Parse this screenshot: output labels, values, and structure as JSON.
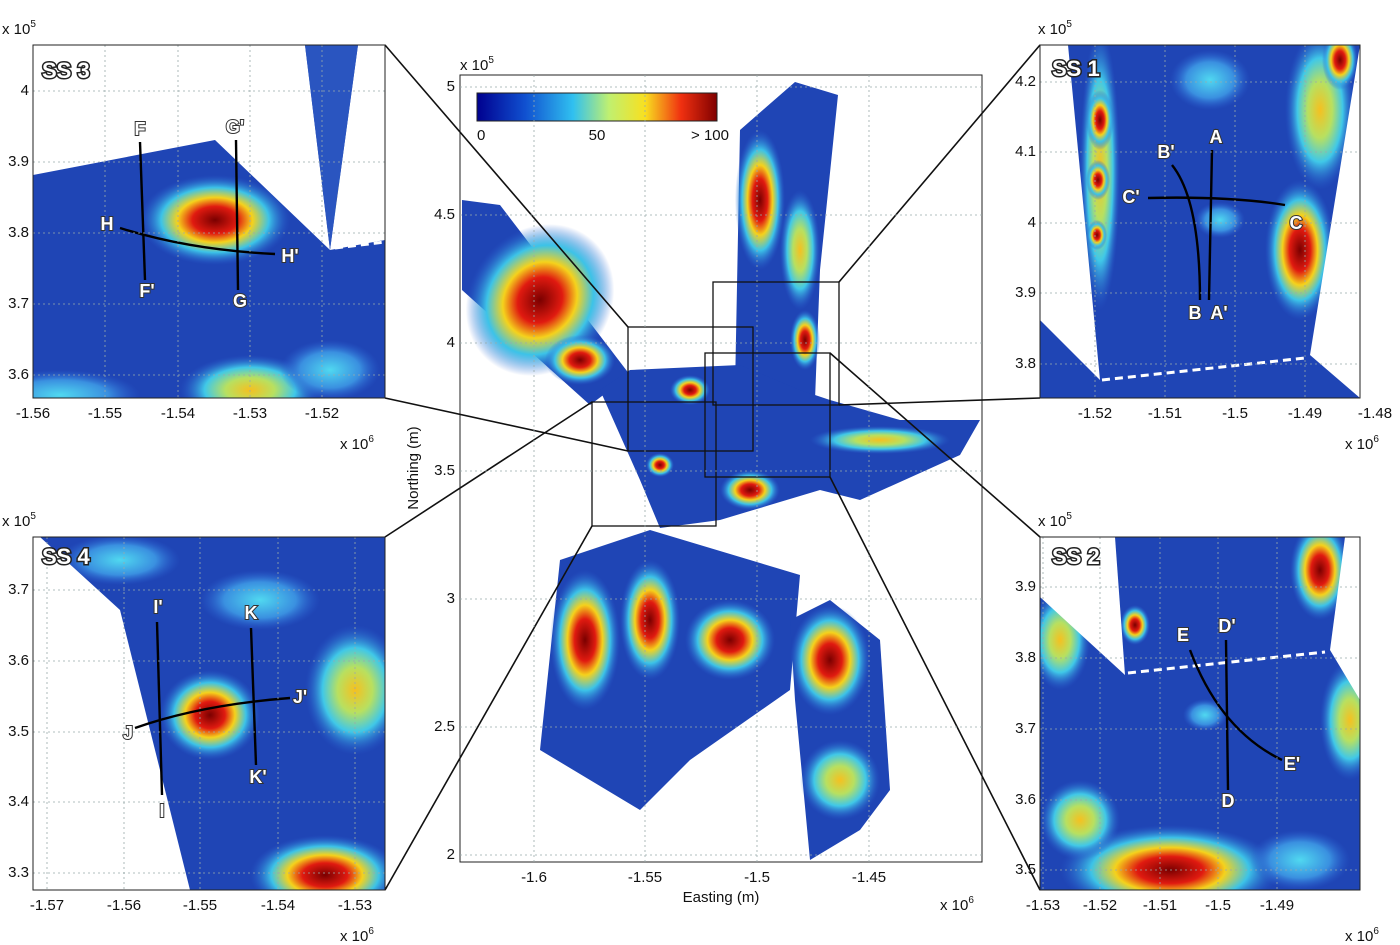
{
  "overview": {
    "y_exponent": {
      "base": "x 10",
      "power": "5"
    },
    "x_exponent": {
      "base": "x 10",
      "power": "6"
    },
    "xticks": [
      "-1.6",
      "-1.55",
      "-1.5",
      "-1.45"
    ],
    "yticks": [
      "5",
      "4.5",
      "4",
      "3.5",
      "3",
      "2.5",
      "2"
    ],
    "xlabel": "Easting (m)",
    "ylabel": "Northing (m)",
    "colorbar_labels": [
      "0",
      "50",
      "> 100"
    ]
  },
  "panels": [
    {
      "title": "SS 3",
      "y_exponent": {
        "base": "x 10",
        "power": "5"
      },
      "x_exponent": {
        "base": "x 10",
        "power": "6"
      },
      "xticks": [
        "-1.56",
        "-1.55",
        "-1.54",
        "-1.53",
        "-1.52"
      ],
      "yticks": [
        "4",
        "3.9",
        "3.8",
        "3.7",
        "3.6"
      ],
      "profile_labels": [
        "F",
        "F'",
        "G'",
        "G",
        "H",
        "H'"
      ]
    },
    {
      "title": "SS 1",
      "y_exponent": {
        "base": "x 10",
        "power": "5"
      },
      "x_exponent": {
        "base": "x 10",
        "power": "6"
      },
      "xticks": [
        "-1.52",
        "-1.51",
        "-1.5",
        "-1.49",
        "-1.48"
      ],
      "yticks": [
        "4.2",
        "4.1",
        "4",
        "3.9",
        "3.8"
      ],
      "profile_labels": [
        "A",
        "A'",
        "B'",
        "B",
        "C'",
        "C"
      ]
    },
    {
      "title": "SS 2",
      "y_exponent": {
        "base": "x 10",
        "power": "5"
      },
      "x_exponent": {
        "base": "x 10",
        "power": "6"
      },
      "xticks": [
        "-1.53",
        "-1.52",
        "-1.51",
        "-1.5",
        "-1.49"
      ],
      "yticks": [
        "3.9",
        "3.8",
        "3.7",
        "3.6",
        "3.5"
      ],
      "profile_labels": [
        "E",
        "E'",
        "D'",
        "D"
      ]
    },
    {
      "title": "SS 4",
      "y_exponent": {
        "base": "x 10",
        "power": "5"
      },
      "x_exponent": {
        "base": "x 10",
        "power": "6"
      },
      "xticks": [
        "-1.57",
        "-1.56",
        "-1.55",
        "-1.54",
        "-1.53"
      ],
      "yticks": [
        "3.7",
        "3.6",
        "3.5",
        "3.4",
        "3.3"
      ],
      "profile_labels": [
        "I'",
        "I",
        "K",
        "K'",
        "J",
        "J'"
      ]
    }
  ]
}
